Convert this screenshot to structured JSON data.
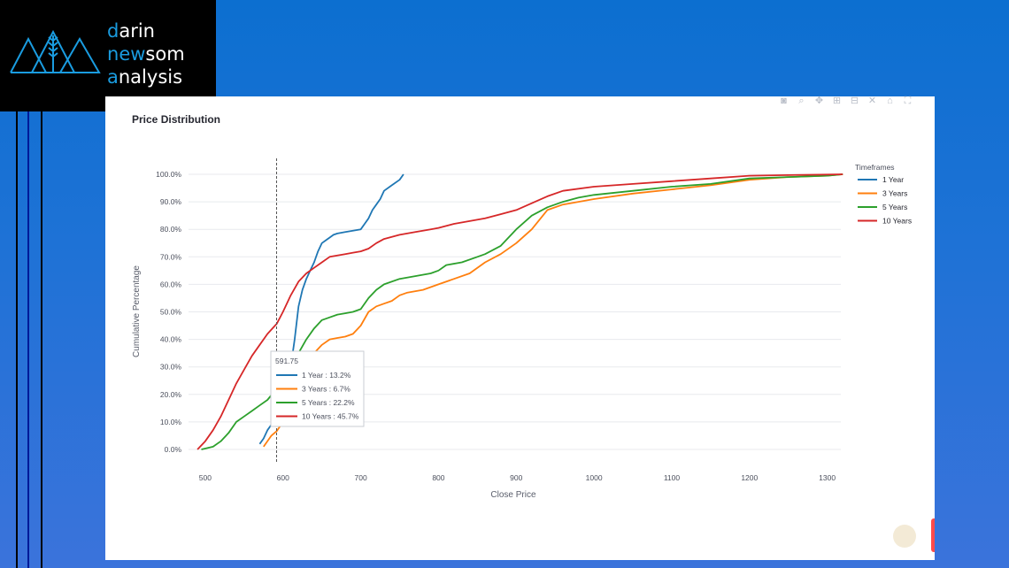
{
  "brand": {
    "lines": [
      {
        "accent": "d",
        "rest": "arin"
      },
      {
        "accent": "n",
        "mid_accent": "ew",
        "rest": "som"
      },
      {
        "accent": "a",
        "rest": "nalysis"
      }
    ],
    "accent_color": "#1a9ce0"
  },
  "toolbar": {
    "icons": [
      "camera-icon",
      "zoom-icon",
      "pan-icon",
      "zoom-in-icon",
      "zoom-out-icon",
      "autoscale-icon",
      "home-icon",
      "fullscreen-icon"
    ]
  },
  "chart_data": {
    "type": "line",
    "title": "Price Distribution",
    "xlabel": "Close Price",
    "ylabel": "Cumulative Percentage",
    "xlim": [
      490,
      1330
    ],
    "ylim": [
      0,
      100
    ],
    "x_ticks": [
      500,
      600,
      700,
      800,
      900,
      1000,
      1100,
      1200,
      1300
    ],
    "y_ticks": [
      "0.0%",
      "10.0%",
      "20.0%",
      "30.0%",
      "40.0%",
      "50.0%",
      "60.0%",
      "70.0%",
      "80.0%",
      "90.0%",
      "100.0%"
    ],
    "grid": true,
    "legend": {
      "title": "Timeframes",
      "placement": "right"
    },
    "hover": {
      "x": 591.75,
      "x_label": "591.75",
      "items": [
        "1 Year : 13.2%",
        "3 Years : 6.7%",
        "5 Years : 22.2%",
        "10 Years : 45.7%"
      ]
    },
    "series": [
      {
        "name": "1 Year",
        "color": "#1f77b4",
        "x": [
          570,
          575,
          580,
          585,
          590,
          592,
          595,
          600,
          605,
          610,
          615,
          620,
          625,
          630,
          635,
          640,
          645,
          650,
          655,
          660,
          665,
          670,
          680,
          690,
          700,
          705,
          710,
          715,
          720,
          725,
          730,
          740,
          750,
          755
        ],
        "y": [
          2,
          4,
          7,
          9,
          12,
          13.2,
          14,
          15,
          22,
          30,
          40,
          52,
          58,
          62,
          65,
          68,
          72,
          75,
          76,
          77,
          78,
          78.5,
          79,
          79.5,
          80,
          82,
          84,
          87,
          89,
          91,
          94,
          96,
          98,
          100
        ]
      },
      {
        "name": "3 Years",
        "color": "#ff7f0e",
        "x": [
          575,
          585,
          592,
          600,
          610,
          620,
          630,
          640,
          650,
          660,
          670,
          680,
          690,
          700,
          710,
          720,
          730,
          740,
          750,
          760,
          780,
          800,
          820,
          840,
          860,
          880,
          900,
          920,
          940,
          960,
          980,
          1000,
          1050,
          1100,
          1150,
          1200,
          1250,
          1300,
          1320
        ],
        "y": [
          1,
          5,
          6.7,
          10,
          14,
          20,
          28,
          35,
          38,
          40,
          40.5,
          41,
          42,
          45,
          50,
          52,
          53,
          54,
          56,
          57,
          58,
          60,
          62,
          64,
          68,
          71,
          75,
          80,
          87,
          89,
          90,
          91,
          93,
          94.5,
          96,
          98,
          99,
          99.5,
          100
        ]
      },
      {
        "name": "5 Years",
        "color": "#2ca02c",
        "x": [
          495,
          510,
          520,
          530,
          540,
          550,
          560,
          570,
          580,
          592,
          600,
          610,
          620,
          630,
          640,
          650,
          660,
          670,
          680,
          690,
          700,
          710,
          720,
          730,
          750,
          770,
          790,
          800,
          810,
          830,
          850,
          860,
          880,
          900,
          920,
          940,
          960,
          980,
          1000,
          1050,
          1100,
          1150,
          1200,
          1250,
          1300,
          1320
        ],
        "y": [
          0,
          1,
          3,
          6,
          10,
          12,
          14,
          16,
          18,
          22.2,
          25,
          30,
          35,
          40,
          44,
          47,
          48,
          49,
          49.5,
          50,
          51,
          55,
          58,
          60,
          62,
          63,
          64,
          65,
          67,
          68,
          70,
          71,
          74,
          80,
          85,
          88,
          90,
          91.5,
          92.5,
          94,
          95.5,
          96.5,
          98.5,
          99,
          99.5,
          100
        ]
      },
      {
        "name": "10 Years",
        "color": "#d62728",
        "x": [
          490,
          500,
          510,
          520,
          530,
          540,
          550,
          560,
          570,
          580,
          592,
          600,
          610,
          620,
          630,
          640,
          650,
          660,
          670,
          680,
          690,
          700,
          710,
          720,
          730,
          750,
          770,
          790,
          800,
          820,
          840,
          860,
          880,
          900,
          920,
          940,
          960,
          1000,
          1050,
          1100,
          1150,
          1200,
          1250,
          1300,
          1320
        ],
        "y": [
          0,
          3,
          7,
          12,
          18,
          24,
          29,
          34,
          38,
          42,
          45.7,
          50,
          56,
          61,
          64,
          66,
          68,
          70,
          70.5,
          71,
          71.5,
          72,
          73,
          75,
          76.5,
          78,
          79,
          80,
          80.5,
          82,
          83,
          84,
          85.5,
          87,
          89.5,
          92,
          94,
          95.5,
          96.5,
          97.5,
          98.5,
          99.5,
          99.7,
          99.9,
          100
        ]
      }
    ]
  }
}
